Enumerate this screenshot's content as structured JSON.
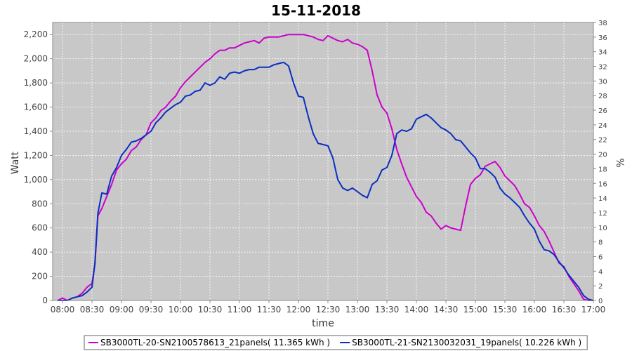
{
  "chart_data": {
    "type": "line",
    "title": "15-11-2018",
    "xlabel": "time",
    "ylabel": "Watt",
    "y2label": "%",
    "xlim": [
      "07:50",
      "17:00"
    ],
    "ylim": [
      0,
      2300
    ],
    "y2lim": [
      0,
      38
    ],
    "x_ticks": [
      "08:00",
      "08:30",
      "09:00",
      "09:30",
      "10:00",
      "10:30",
      "11:00",
      "11:30",
      "12:00",
      "12:30",
      "13:00",
      "13:30",
      "14:00",
      "14:30",
      "15:00",
      "15:30",
      "16:00",
      "16:30",
      "17:00"
    ],
    "y_ticks": [
      0,
      200,
      400,
      600,
      800,
      1000,
      1200,
      1400,
      1600,
      1800,
      2000,
      2200
    ],
    "y_tick_labels": [
      "0",
      "200",
      "400",
      "600",
      "800",
      "1,000",
      "1,200",
      "1,400",
      "1,600",
      "1,800",
      "2,000",
      "2,200"
    ],
    "y2_ticks": [
      0,
      2,
      4,
      6,
      8,
      10,
      12,
      14,
      16,
      18,
      20,
      22,
      24,
      26,
      28,
      30,
      32,
      34,
      36,
      38
    ],
    "grid": true,
    "legend_position": "bottom",
    "series": [
      {
        "name": "SB3000TL-20-SN2100578613_21panels( 11.365 kWh )",
        "color": "#cc00cc",
        "points": [
          [
            "07:55",
            0
          ],
          [
            "08:00",
            20
          ],
          [
            "08:05",
            0
          ],
          [
            "08:10",
            20
          ],
          [
            "08:15",
            30
          ],
          [
            "08:20",
            60
          ],
          [
            "08:25",
            110
          ],
          [
            "08:30",
            140
          ],
          [
            "08:33",
            300
          ],
          [
            "08:36",
            700
          ],
          [
            "08:40",
            760
          ],
          [
            "08:45",
            860
          ],
          [
            "08:50",
            960
          ],
          [
            "08:55",
            1080
          ],
          [
            "09:00",
            1130
          ],
          [
            "09:05",
            1170
          ],
          [
            "09:10",
            1240
          ],
          [
            "09:15",
            1270
          ],
          [
            "09:20",
            1330
          ],
          [
            "09:25",
            1370
          ],
          [
            "09:30",
            1470
          ],
          [
            "09:35",
            1510
          ],
          [
            "09:40",
            1570
          ],
          [
            "09:45",
            1600
          ],
          [
            "09:50",
            1650
          ],
          [
            "09:55",
            1690
          ],
          [
            "10:00",
            1760
          ],
          [
            "10:05",
            1810
          ],
          [
            "10:10",
            1850
          ],
          [
            "10:15",
            1890
          ],
          [
            "10:20",
            1930
          ],
          [
            "10:25",
            1970
          ],
          [
            "10:30",
            2000
          ],
          [
            "10:35",
            2040
          ],
          [
            "10:40",
            2070
          ],
          [
            "10:45",
            2070
          ],
          [
            "10:50",
            2090
          ],
          [
            "10:55",
            2090
          ],
          [
            "11:00",
            2110
          ],
          [
            "11:05",
            2130
          ],
          [
            "11:10",
            2140
          ],
          [
            "11:15",
            2150
          ],
          [
            "11:20",
            2130
          ],
          [
            "11:25",
            2170
          ],
          [
            "11:30",
            2180
          ],
          [
            "11:35",
            2180
          ],
          [
            "11:40",
            2180
          ],
          [
            "11:45",
            2190
          ],
          [
            "11:50",
            2200
          ],
          [
            "11:55",
            2200
          ],
          [
            "12:00",
            2200
          ],
          [
            "12:05",
            2200
          ],
          [
            "12:10",
            2190
          ],
          [
            "12:15",
            2180
          ],
          [
            "12:20",
            2160
          ],
          [
            "12:25",
            2150
          ],
          [
            "12:30",
            2190
          ],
          [
            "12:35",
            2170
          ],
          [
            "12:40",
            2150
          ],
          [
            "12:45",
            2140
          ],
          [
            "12:50",
            2160
          ],
          [
            "12:55",
            2130
          ],
          [
            "13:00",
            2120
          ],
          [
            "13:05",
            2100
          ],
          [
            "13:10",
            2070
          ],
          [
            "13:15",
            1900
          ],
          [
            "13:20",
            1700
          ],
          [
            "13:25",
            1600
          ],
          [
            "13:30",
            1550
          ],
          [
            "13:35",
            1420
          ],
          [
            "13:40",
            1250
          ],
          [
            "13:45",
            1130
          ],
          [
            "13:50",
            1020
          ],
          [
            "13:55",
            940
          ],
          [
            "14:00",
            860
          ],
          [
            "14:05",
            810
          ],
          [
            "14:10",
            730
          ],
          [
            "14:15",
            700
          ],
          [
            "14:20",
            640
          ],
          [
            "14:25",
            590
          ],
          [
            "14:30",
            620
          ],
          [
            "14:35",
            600
          ],
          [
            "14:40",
            590
          ],
          [
            "14:45",
            580
          ],
          [
            "14:50",
            780
          ],
          [
            "14:55",
            960
          ],
          [
            "15:00",
            1010
          ],
          [
            "15:05",
            1040
          ],
          [
            "15:10",
            1110
          ],
          [
            "15:15",
            1130
          ],
          [
            "15:20",
            1150
          ],
          [
            "15:25",
            1100
          ],
          [
            "15:30",
            1030
          ],
          [
            "15:35",
            990
          ],
          [
            "15:40",
            950
          ],
          [
            "15:45",
            880
          ],
          [
            "15:50",
            800
          ],
          [
            "15:55",
            770
          ],
          [
            "16:00",
            700
          ],
          [
            "16:05",
            620
          ],
          [
            "16:10",
            570
          ],
          [
            "16:15",
            490
          ],
          [
            "16:20",
            400
          ],
          [
            "16:25",
            310
          ],
          [
            "16:30",
            280
          ],
          [
            "16:35",
            200
          ],
          [
            "16:40",
            140
          ],
          [
            "16:45",
            80
          ],
          [
            "16:50",
            10
          ],
          [
            "16:55",
            0
          ],
          [
            "17:00",
            0
          ]
        ]
      },
      {
        "name": "SB3000TL-21-SN2130032031_19panels( 10.226 kWh )",
        "color": "#0b2fbf",
        "points": [
          [
            "07:55",
            0
          ],
          [
            "08:00",
            0
          ],
          [
            "08:05",
            0
          ],
          [
            "08:10",
            20
          ],
          [
            "08:15",
            30
          ],
          [
            "08:20",
            40
          ],
          [
            "08:25",
            70
          ],
          [
            "08:30",
            110
          ],
          [
            "08:33",
            310
          ],
          [
            "08:36",
            720
          ],
          [
            "08:40",
            890
          ],
          [
            "08:45",
            880
          ],
          [
            "08:50",
            1030
          ],
          [
            "08:55",
            1100
          ],
          [
            "09:00",
            1200
          ],
          [
            "09:05",
            1250
          ],
          [
            "09:10",
            1310
          ],
          [
            "09:15",
            1320
          ],
          [
            "09:20",
            1340
          ],
          [
            "09:25",
            1370
          ],
          [
            "09:30",
            1400
          ],
          [
            "09:35",
            1470
          ],
          [
            "09:40",
            1510
          ],
          [
            "09:45",
            1560
          ],
          [
            "09:50",
            1590
          ],
          [
            "09:55",
            1620
          ],
          [
            "10:00",
            1640
          ],
          [
            "10:05",
            1690
          ],
          [
            "10:10",
            1700
          ],
          [
            "10:15",
            1730
          ],
          [
            "10:20",
            1740
          ],
          [
            "10:25",
            1800
          ],
          [
            "10:30",
            1780
          ],
          [
            "10:35",
            1800
          ],
          [
            "10:40",
            1850
          ],
          [
            "10:45",
            1830
          ],
          [
            "10:50",
            1880
          ],
          [
            "10:55",
            1890
          ],
          [
            "11:00",
            1880
          ],
          [
            "11:05",
            1900
          ],
          [
            "11:10",
            1910
          ],
          [
            "11:15",
            1910
          ],
          [
            "11:20",
            1930
          ],
          [
            "11:25",
            1930
          ],
          [
            "11:30",
            1930
          ],
          [
            "11:35",
            1950
          ],
          [
            "11:40",
            1960
          ],
          [
            "11:45",
            1970
          ],
          [
            "11:50",
            1940
          ],
          [
            "11:55",
            1800
          ],
          [
            "12:00",
            1690
          ],
          [
            "12:05",
            1680
          ],
          [
            "12:10",
            1520
          ],
          [
            "12:15",
            1380
          ],
          [
            "12:20",
            1300
          ],
          [
            "12:25",
            1290
          ],
          [
            "12:30",
            1280
          ],
          [
            "12:35",
            1180
          ],
          [
            "12:40",
            1000
          ],
          [
            "12:45",
            930
          ],
          [
            "12:50",
            910
          ],
          [
            "12:55",
            930
          ],
          [
            "13:00",
            900
          ],
          [
            "13:05",
            870
          ],
          [
            "13:10",
            850
          ],
          [
            "13:15",
            960
          ],
          [
            "13:20",
            990
          ],
          [
            "13:25",
            1080
          ],
          [
            "13:30",
            1100
          ],
          [
            "13:35",
            1200
          ],
          [
            "13:40",
            1380
          ],
          [
            "13:45",
            1410
          ],
          [
            "13:50",
            1400
          ],
          [
            "13:55",
            1420
          ],
          [
            "14:00",
            1500
          ],
          [
            "14:05",
            1520
          ],
          [
            "14:10",
            1540
          ],
          [
            "14:15",
            1510
          ],
          [
            "14:20",
            1470
          ],
          [
            "14:25",
            1430
          ],
          [
            "14:30",
            1410
          ],
          [
            "14:35",
            1380
          ],
          [
            "14:40",
            1330
          ],
          [
            "14:45",
            1320
          ],
          [
            "14:50",
            1270
          ],
          [
            "14:55",
            1220
          ],
          [
            "15:00",
            1180
          ],
          [
            "15:05",
            1090
          ],
          [
            "15:10",
            1090
          ],
          [
            "15:15",
            1060
          ],
          [
            "15:20",
            1020
          ],
          [
            "15:25",
            930
          ],
          [
            "15:30",
            880
          ],
          [
            "15:35",
            850
          ],
          [
            "15:40",
            810
          ],
          [
            "15:45",
            770
          ],
          [
            "15:50",
            700
          ],
          [
            "15:55",
            640
          ],
          [
            "16:00",
            590
          ],
          [
            "16:05",
            490
          ],
          [
            "16:10",
            420
          ],
          [
            "16:15",
            410
          ],
          [
            "16:20",
            380
          ],
          [
            "16:25",
            320
          ],
          [
            "16:30",
            270
          ],
          [
            "16:35",
            210
          ],
          [
            "16:40",
            160
          ],
          [
            "16:45",
            110
          ],
          [
            "16:50",
            40
          ],
          [
            "16:55",
            10
          ],
          [
            "17:00",
            0
          ]
        ]
      }
    ]
  }
}
